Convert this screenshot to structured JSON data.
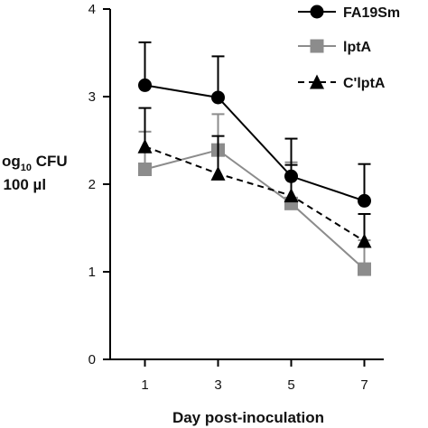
{
  "chart_data": {
    "type": "line",
    "x": [
      1,
      3,
      5,
      7
    ],
    "xlabel": "Day post-inoculation",
    "ylabel_line1": "og",
    "ylabel_sub": "10",
    "ylabel_line1_rest": " CFU",
    "ylabel_line2": "/ 100 µl",
    "ylim": [
      0,
      4
    ],
    "yticks": [
      0,
      1,
      2,
      3,
      4
    ],
    "xticks": [
      1,
      3,
      5,
      7
    ],
    "grid": false,
    "legend_position": "top-right",
    "series": [
      {
        "name": "FA19Sm",
        "values": [
          3.13,
          2.99,
          2.09,
          1.81
        ],
        "err_upper": [
          3.62,
          3.46,
          2.52,
          2.23
        ],
        "color": "#000000",
        "marker": "circle",
        "line": "solid"
      },
      {
        "name": "lptA",
        "values": [
          2.17,
          2.39,
          1.78,
          1.03
        ],
        "err_upper": [
          2.6,
          2.8,
          2.25,
          1.36
        ],
        "color": "#8c8c8c",
        "marker": "square",
        "line": "solid"
      },
      {
        "name": "C'lptA",
        "values": [
          2.43,
          2.12,
          1.87,
          1.35
        ],
        "err_upper": [
          2.87,
          2.55,
          2.22,
          1.66
        ],
        "color": "#000000",
        "marker": "triangle",
        "line": "dashed"
      }
    ]
  }
}
